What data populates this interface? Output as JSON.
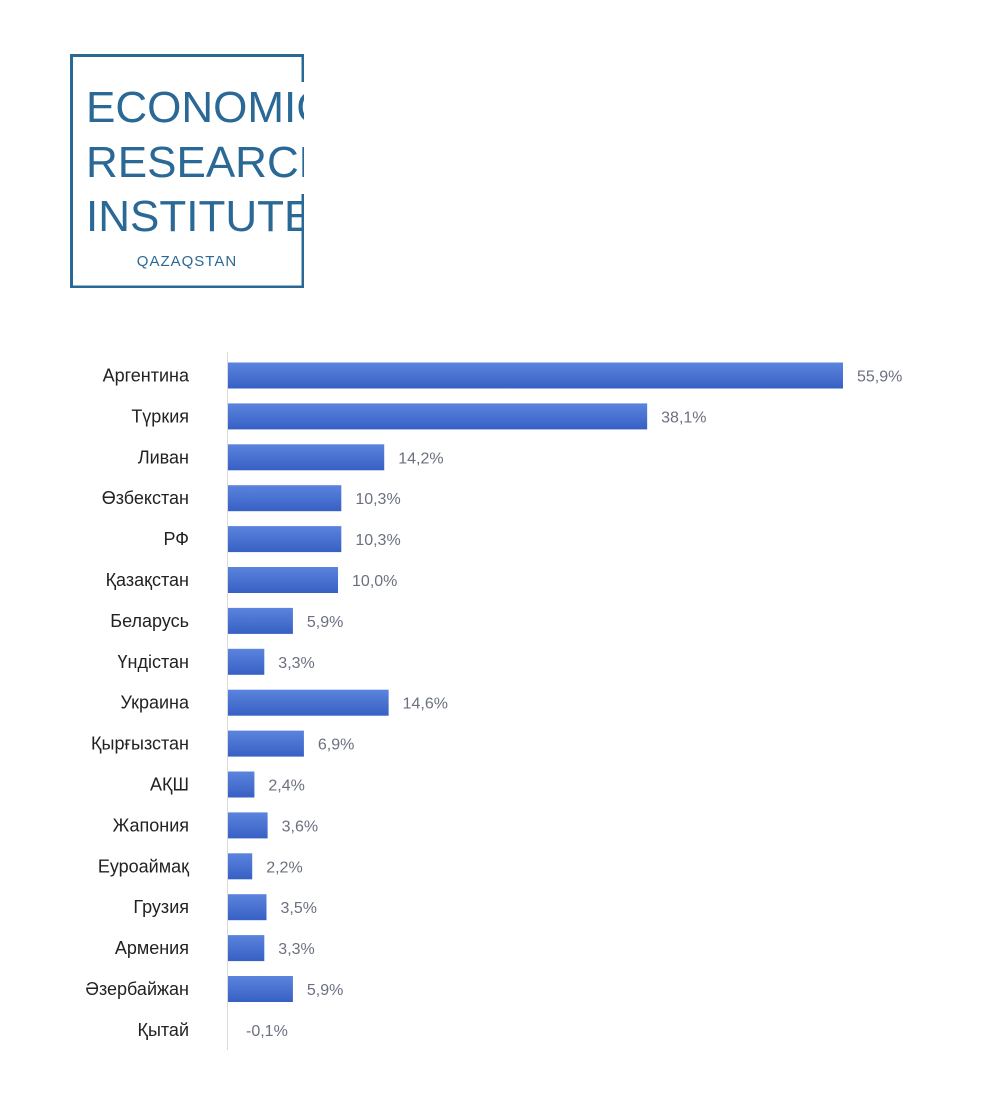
{
  "logo": {
    "line1": "ECONOMIC",
    "line2": "RESEARCH",
    "line3": "INSTITUTE",
    "subtitle": "QAZAQSTAN",
    "color": "#2a6896"
  },
  "chart_data": {
    "type": "bar",
    "orientation": "horizontal",
    "categories": [
      "Аргентина",
      "Түркия",
      "Ливан",
      "Өзбекстан",
      "РФ",
      "Қазақстан",
      "Беларусь",
      "Үндістан",
      "Украина",
      "Қырғызстан",
      "АҚШ",
      "Жапония",
      "Еуроаймақ",
      "Грузия",
      "Армения",
      "Әзербайжан",
      "Қытай"
    ],
    "values": [
      55.9,
      38.1,
      14.2,
      10.3,
      10.3,
      10.0,
      5.9,
      3.3,
      14.6,
      6.9,
      2.4,
      3.6,
      2.2,
      3.5,
      3.3,
      5.9,
      -0.1
    ],
    "value_labels": [
      "55,9%",
      "38,1%",
      "14,2%",
      "10,3%",
      "10,3%",
      "10,0%",
      "5,9%",
      "3,3%",
      "14,6%",
      "6,9%",
      "2,4%",
      "3,6%",
      "2,2%",
      "3,5%",
      "3,3%",
      "5,9%",
      "-0,1%"
    ],
    "xlim": [
      0,
      55.9
    ],
    "bar_color": "#3a66c8",
    "bar_color_light": "#5b84de",
    "axis_color": "#d9d9d9",
    "grid": false,
    "legend": "none"
  }
}
